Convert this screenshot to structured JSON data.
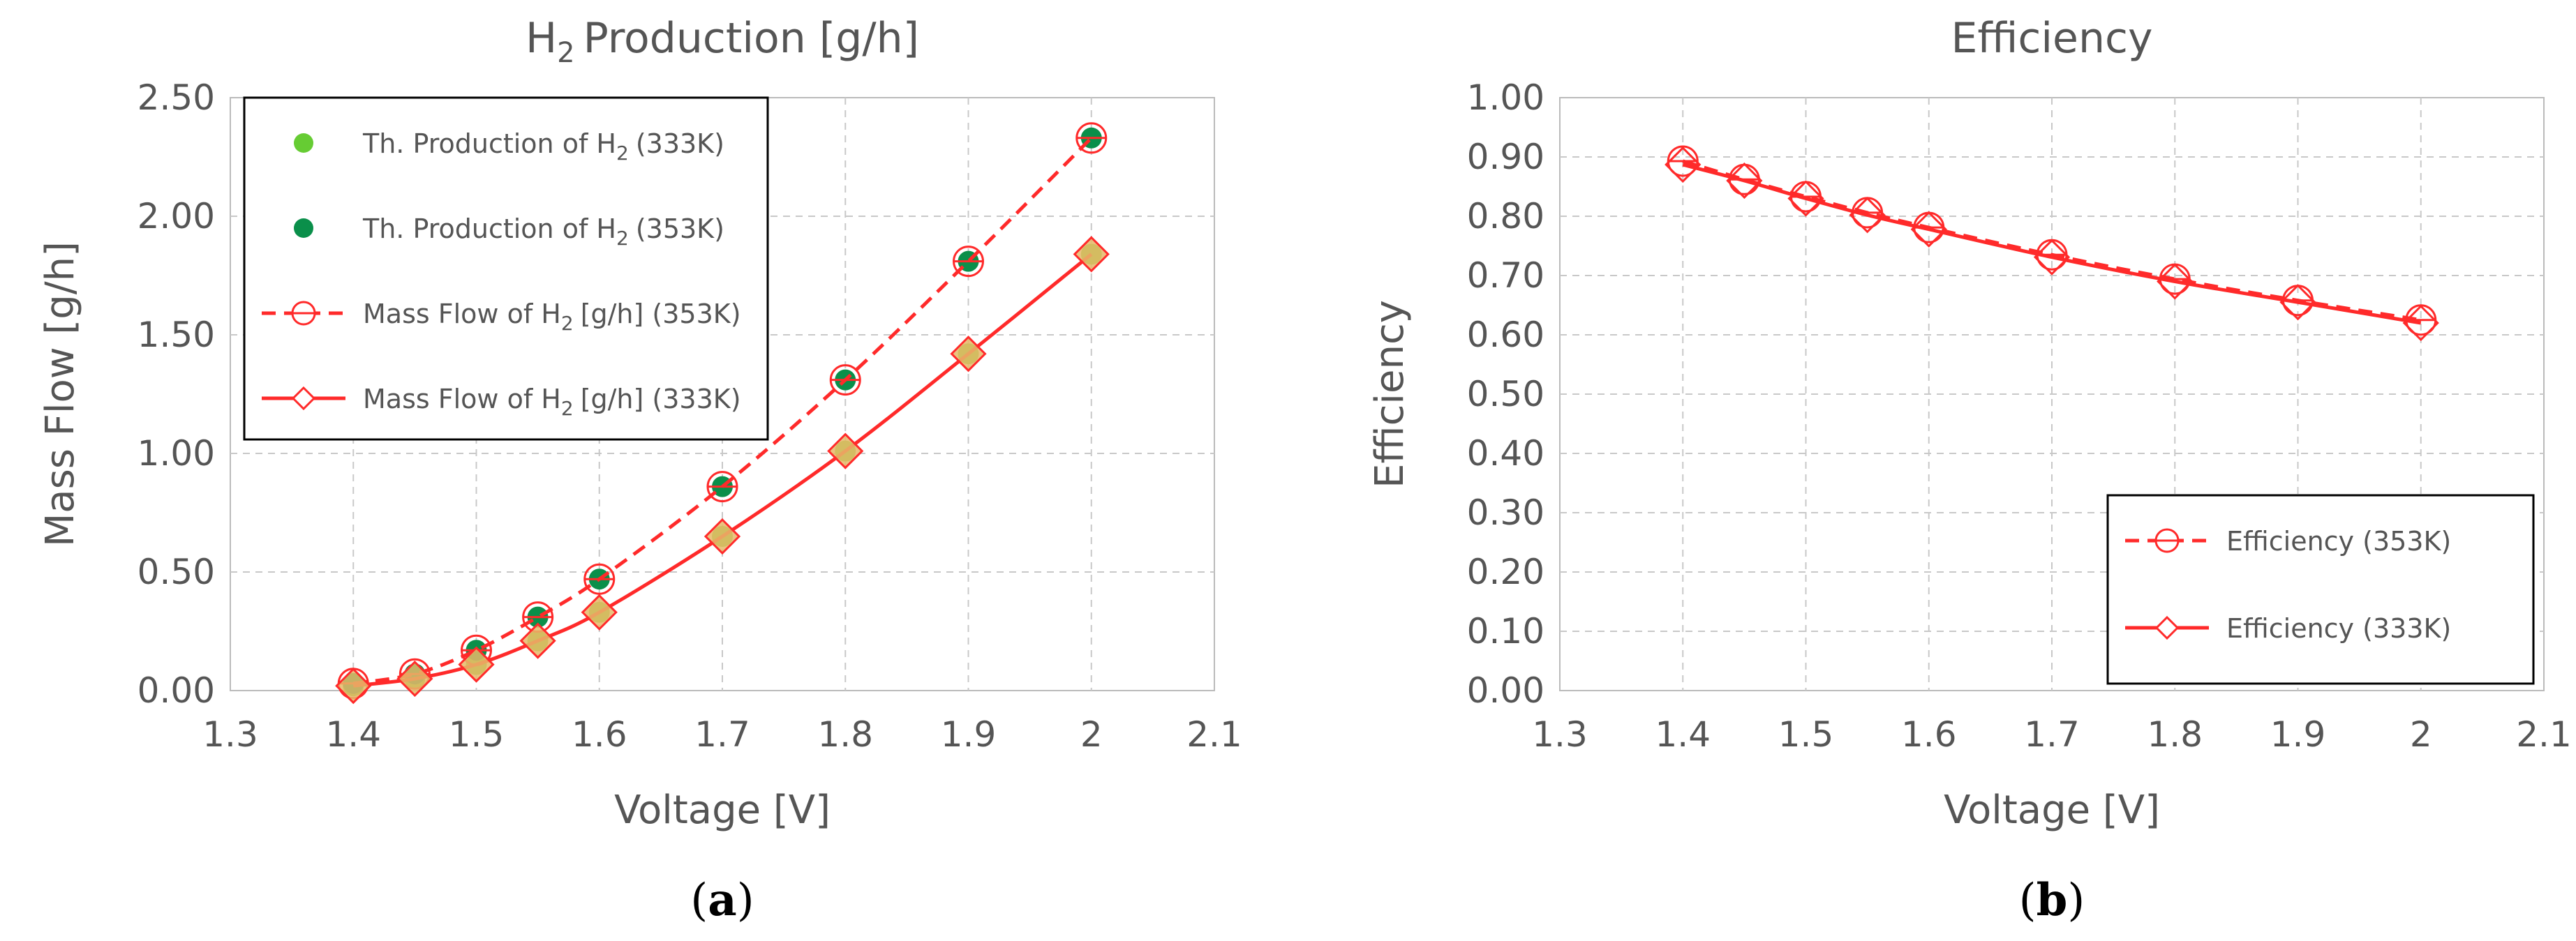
{
  "chart_data": [
    {
      "type": "line",
      "title": "Production [g/h]",
      "title_prefix": "H",
      "title_sub": "2",
      "xlabel": "Voltage [V]",
      "ylabel": "Mass Flow [g/h]",
      "xlim": [
        1.3,
        2.1
      ],
      "ylim": [
        0,
        2.5
      ],
      "x_ticks": [
        "1.3",
        "1.4",
        "1.5",
        "1.6",
        "1.7",
        "1.8",
        "1.9",
        "2",
        "2.1"
      ],
      "y_ticks": [
        "0.00",
        "0.50",
        "1.00",
        "1.50",
        "2.00",
        "2.50"
      ],
      "grid": true,
      "legend_position": "top-left",
      "panel_label": "a",
      "series": [
        {
          "name": "Th. Production of H",
          "name_sub": "2",
          "name_suffix": "(333K)",
          "style": "points",
          "color": "#66cc33",
          "x": [
            1.4,
            1.45,
            1.5,
            1.55,
            1.6,
            1.7,
            1.8,
            1.9,
            2.0
          ],
          "y": [
            0.02,
            0.05,
            0.11,
            0.21,
            0.33,
            0.65,
            1.01,
            1.42,
            1.84
          ]
        },
        {
          "name": "Th. Production of H",
          "name_sub": "2",
          "name_suffix": "(353K)",
          "style": "points",
          "color": "#0a8f4a",
          "x": [
            1.4,
            1.45,
            1.5,
            1.55,
            1.6,
            1.7,
            1.8,
            1.9,
            2.0
          ],
          "y": [
            0.03,
            0.07,
            0.17,
            0.31,
            0.47,
            0.86,
            1.31,
            1.81,
            2.33
          ]
        },
        {
          "name": "Mass Flow of H",
          "name_sub": "2",
          "name_suffix": "[g/h] (353K)",
          "style": "dashed-circle",
          "color": "#ff2a2a",
          "x": [
            1.4,
            1.45,
            1.5,
            1.55,
            1.6,
            1.7,
            1.8,
            1.9,
            2.0
          ],
          "y": [
            0.03,
            0.07,
            0.17,
            0.31,
            0.47,
            0.86,
            1.31,
            1.81,
            2.33
          ]
        },
        {
          "name": "Mass Flow of H",
          "name_sub": "2",
          "name_suffix": "[g/h] (333K)",
          "style": "solid-diamond",
          "color": "#ff2a2a",
          "x": [
            1.4,
            1.45,
            1.5,
            1.55,
            1.6,
            1.7,
            1.8,
            1.9,
            2.0
          ],
          "y": [
            0.02,
            0.05,
            0.11,
            0.21,
            0.33,
            0.65,
            1.01,
            1.42,
            1.84
          ]
        }
      ]
    },
    {
      "type": "line",
      "title": "Efficiency",
      "xlabel": "Voltage [V]",
      "ylabel": "Efficiency",
      "xlim": [
        1.3,
        2.1
      ],
      "ylim": [
        0,
        1
      ],
      "x_ticks": [
        "1.3",
        "1.4",
        "1.5",
        "1.6",
        "1.7",
        "1.8",
        "1.9",
        "2",
        "2.1"
      ],
      "y_ticks": [
        "0.00",
        "0.10",
        "0.20",
        "0.30",
        "0.40",
        "0.50",
        "0.60",
        "0.70",
        "0.80",
        "0.90",
        "1.00"
      ],
      "grid": true,
      "legend_position": "bottom-right",
      "panel_label": "b",
      "series": [
        {
          "name": "Efficiency (353K)",
          "style": "dashed-circle",
          "color": "#ff2a2a",
          "x": [
            1.4,
            1.45,
            1.5,
            1.55,
            1.6,
            1.7,
            1.8,
            1.9,
            2.0
          ],
          "y": [
            0.893,
            0.862,
            0.833,
            0.806,
            0.781,
            0.735,
            0.694,
            0.658,
            0.625
          ]
        },
        {
          "name": "Efficiency (333K)",
          "style": "solid-diamond",
          "color": "#ff2a2a",
          "x": [
            1.4,
            1.45,
            1.5,
            1.55,
            1.6,
            1.7,
            1.8,
            1.9,
            2.0
          ],
          "y": [
            0.887,
            0.86,
            0.83,
            0.802,
            0.778,
            0.731,
            0.69,
            0.655,
            0.62
          ]
        }
      ]
    }
  ]
}
